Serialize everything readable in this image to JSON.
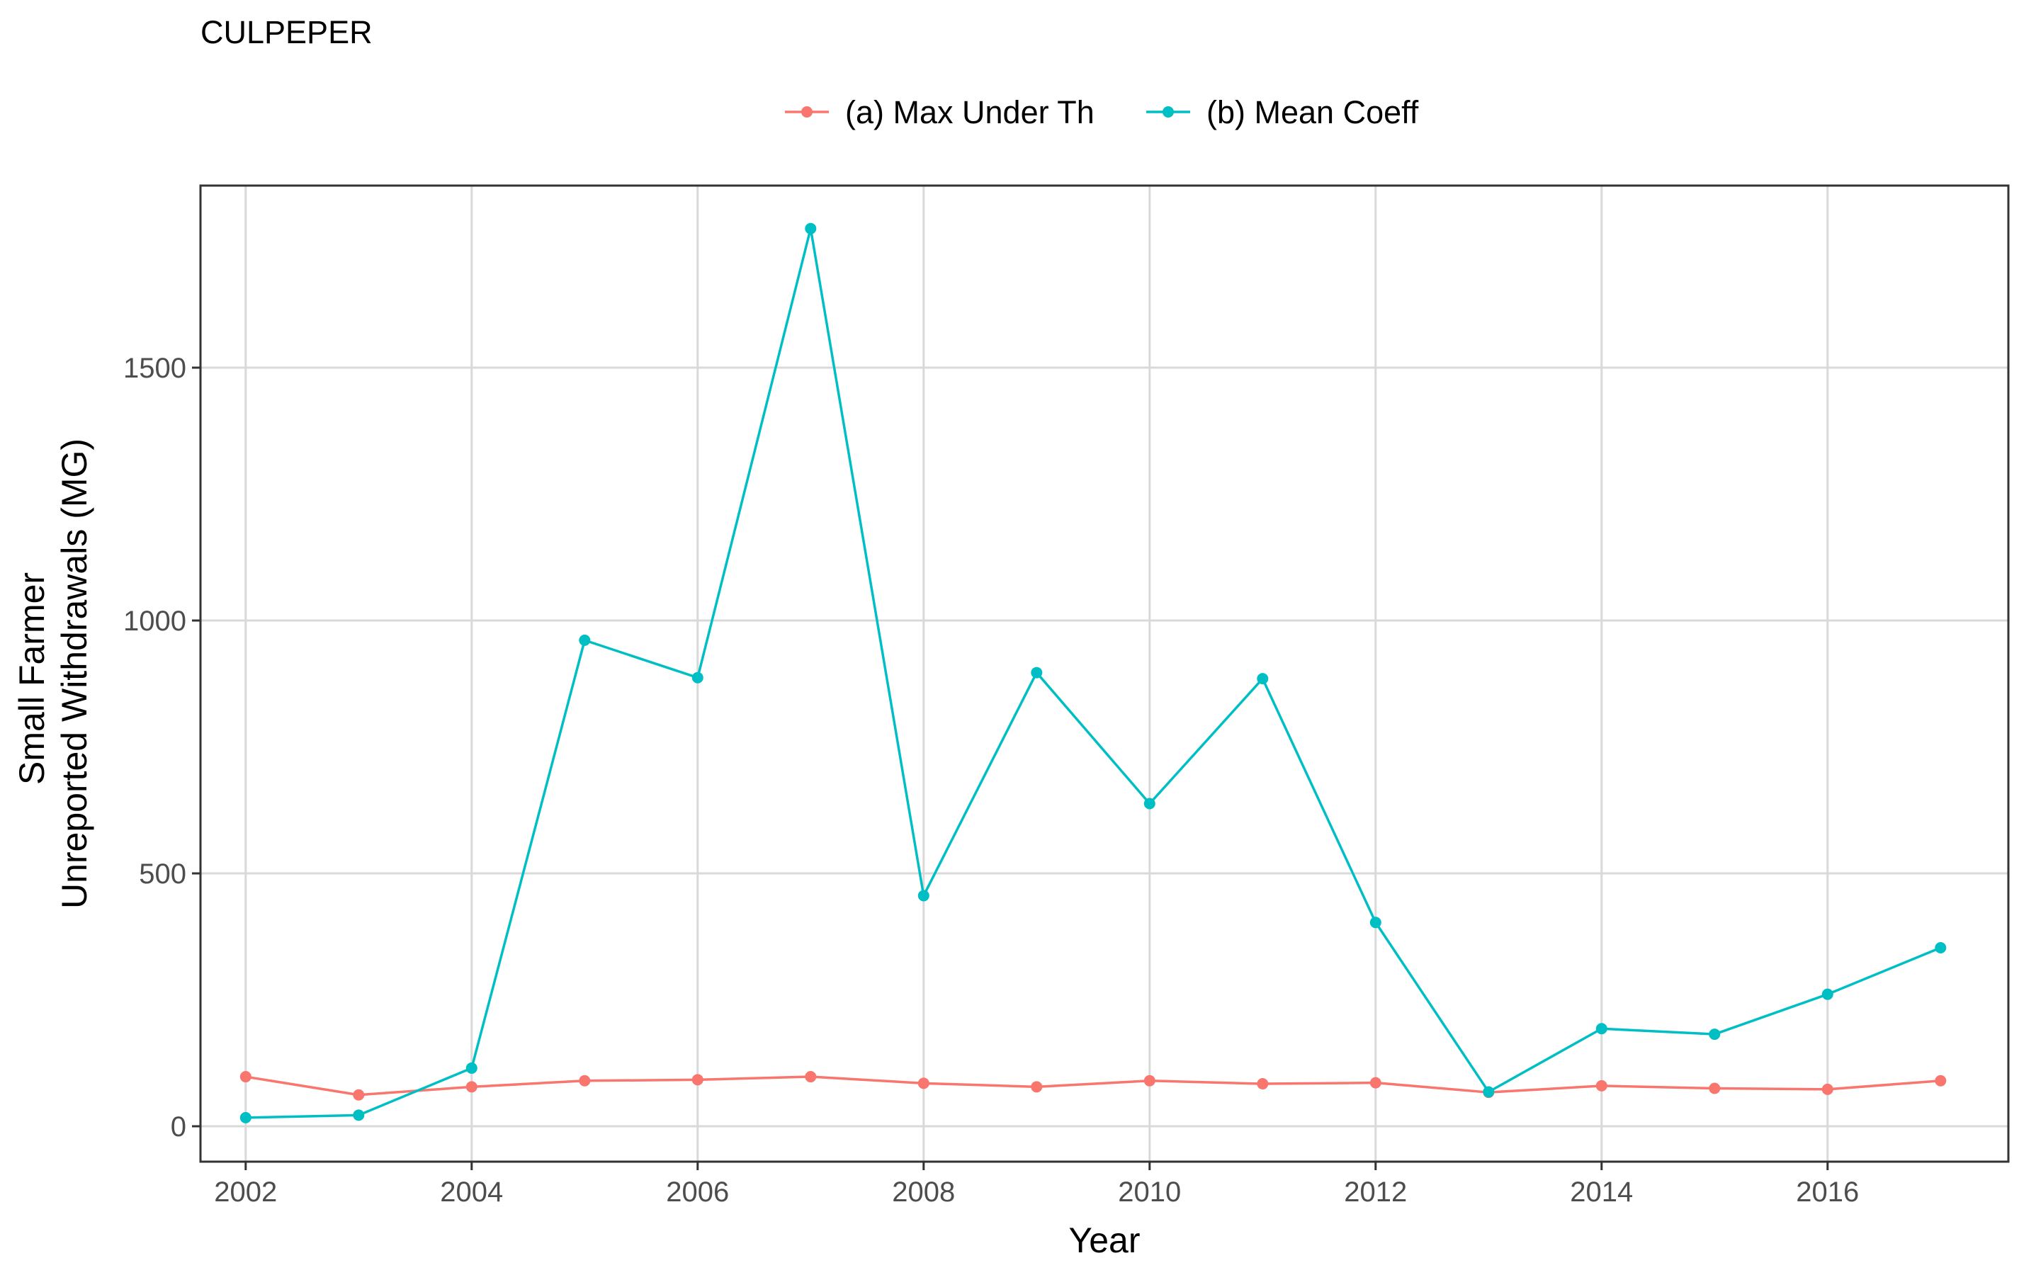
{
  "chart_data": {
    "type": "line",
    "title": "CULPEPER",
    "xlabel": "Year",
    "ylabel_lines": [
      "Small Farmer",
      "Unreported Withdrawals (MG)"
    ],
    "xlim": [
      2001.6,
      2017.6
    ],
    "ylim": [
      -70,
      1860
    ],
    "x_ticks": [
      2002,
      2004,
      2006,
      2008,
      2010,
      2012,
      2014,
      2016
    ],
    "y_ticks": [
      0,
      500,
      1000,
      1500
    ],
    "grid": true,
    "legend_position": "top",
    "x": [
      2002,
      2003,
      2004,
      2005,
      2006,
      2007,
      2008,
      2009,
      2010,
      2011,
      2012,
      2013,
      2014,
      2015,
      2016,
      2017
    ],
    "series": [
      {
        "name": "(a) Max Under Th",
        "color": "#F8766D",
        "values": [
          98,
          62,
          78,
          90,
          92,
          98,
          85,
          78,
          90,
          84,
          86,
          67,
          80,
          75,
          73,
          90
        ]
      },
      {
        "name": "(b) Mean Coeff",
        "color": "#00BFC4",
        "values": [
          17,
          22,
          115,
          961,
          887,
          1775,
          456,
          897,
          638,
          885,
          403,
          68,
          193,
          182,
          261,
          353
        ]
      }
    ]
  }
}
